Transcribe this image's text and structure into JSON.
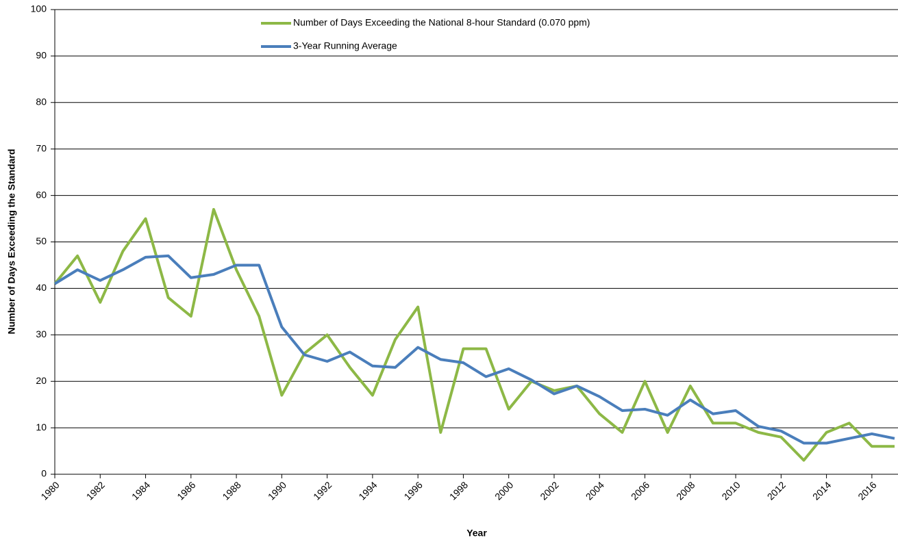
{
  "chart_data": {
    "type": "line",
    "x_label": "Year",
    "y_label": "Number of Days Exceeding the Standard",
    "x": [
      1980,
      1981,
      1982,
      1983,
      1984,
      1985,
      1986,
      1987,
      1988,
      1989,
      1990,
      1991,
      1992,
      1993,
      1994,
      1995,
      1996,
      1997,
      1998,
      1999,
      2000,
      2001,
      2002,
      2003,
      2004,
      2005,
      2006,
      2007,
      2008,
      2009,
      2010,
      2011,
      2012,
      2013,
      2014,
      2015,
      2016,
      2017
    ],
    "series": [
      {
        "name": "Number of Days Exceeding the National 8-hour Standard (0.070 ppm)",
        "color": "#8db846",
        "values": [
          41,
          47,
          37,
          48,
          55,
          38,
          34,
          57,
          44,
          34,
          17,
          26,
          30,
          23,
          17,
          29,
          36,
          9,
          27,
          27,
          14,
          20,
          18,
          19,
          13,
          9,
          20,
          9,
          19,
          11,
          11,
          9,
          8,
          3,
          9,
          11,
          6,
          6
        ]
      },
      {
        "name": "3-Year Running Average",
        "color": "#4a7ebb",
        "values": [
          41,
          44,
          41.7,
          44,
          46.7,
          47,
          42.3,
          43,
          45,
          45,
          31.7,
          25.7,
          24.3,
          26.3,
          23.3,
          23,
          27.3,
          24.7,
          24,
          21,
          22.7,
          20.3,
          17.3,
          19,
          16.7,
          13.7,
          14,
          12.7,
          16,
          13,
          13.7,
          10.3,
          9.3,
          6.7,
          6.7,
          7.7,
          8.7,
          7.7
        ]
      }
    ],
    "xlim": [
      1980,
      2017
    ],
    "xticks": [
      1980,
      1982,
      1984,
      1986,
      1988,
      1990,
      1992,
      1994,
      1996,
      1998,
      2000,
      2002,
      2004,
      2006,
      2008,
      2010,
      2012,
      2014,
      2016
    ],
    "ylim": [
      0,
      100
    ],
    "yticks": [
      0,
      10,
      20,
      30,
      40,
      50,
      60,
      70,
      80,
      90,
      100
    ],
    "grid": true
  }
}
